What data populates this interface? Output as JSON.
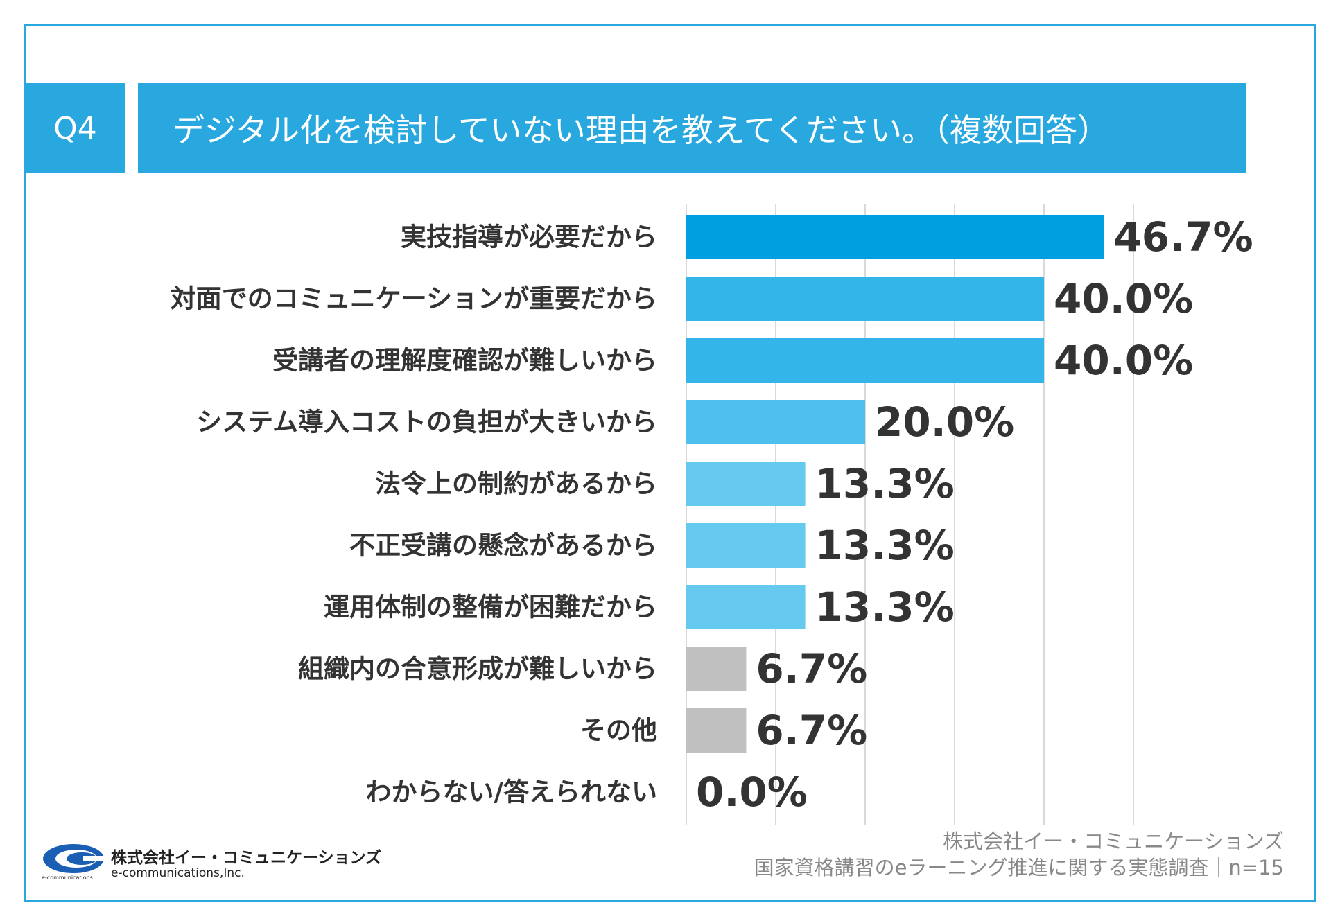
{
  "header": {
    "badge": "Q4",
    "title": "デジタル化を検討していない理由を教えてください。（複数回答）"
  },
  "chart_data": {
    "type": "bar",
    "orientation": "horizontal",
    "categories": [
      "実技指導が必要だから",
      "対面でのコミュニケーションが重要だから",
      "受講者の理解度確認が難しいから",
      "システム導入コストの負担が大きいから",
      "法令上の制約があるから",
      "不正受講の懸念があるから",
      "運用体制の整備が困難だから",
      "組織内の合意形成が難しいから",
      "その他",
      "わからない/答えられない"
    ],
    "values": [
      46.7,
      40.0,
      40.0,
      20.0,
      13.3,
      13.3,
      13.3,
      6.7,
      6.7,
      0.0
    ],
    "value_labels": [
      "46.7%",
      "40.0%",
      "40.0%",
      "20.0%",
      "13.3%",
      "13.3%",
      "13.3%",
      "6.7%",
      "6.7%",
      "0.0%"
    ],
    "colors": [
      "#00a0e0",
      "#33b5ea",
      "#33b5ea",
      "#4fc0ee",
      "#66c9f0",
      "#66c9f0",
      "#66c9f0",
      "#c0c0c0",
      "#c0c0c0",
      "#c0c0c0"
    ],
    "xlim": [
      0,
      50
    ],
    "gridlines": [
      10,
      20,
      30,
      40,
      50
    ],
    "grid": true
  },
  "footer": {
    "logo_jp": "株式会社イー・コミュニケーションズ",
    "logo_en": "e-communications,Inc.",
    "logo_small": "e-communications",
    "source_line1": "株式会社イー・コミュニケーションズ",
    "source_line2": "国家資格講習のeラーニング推進に関する実態調査｜n=15"
  }
}
